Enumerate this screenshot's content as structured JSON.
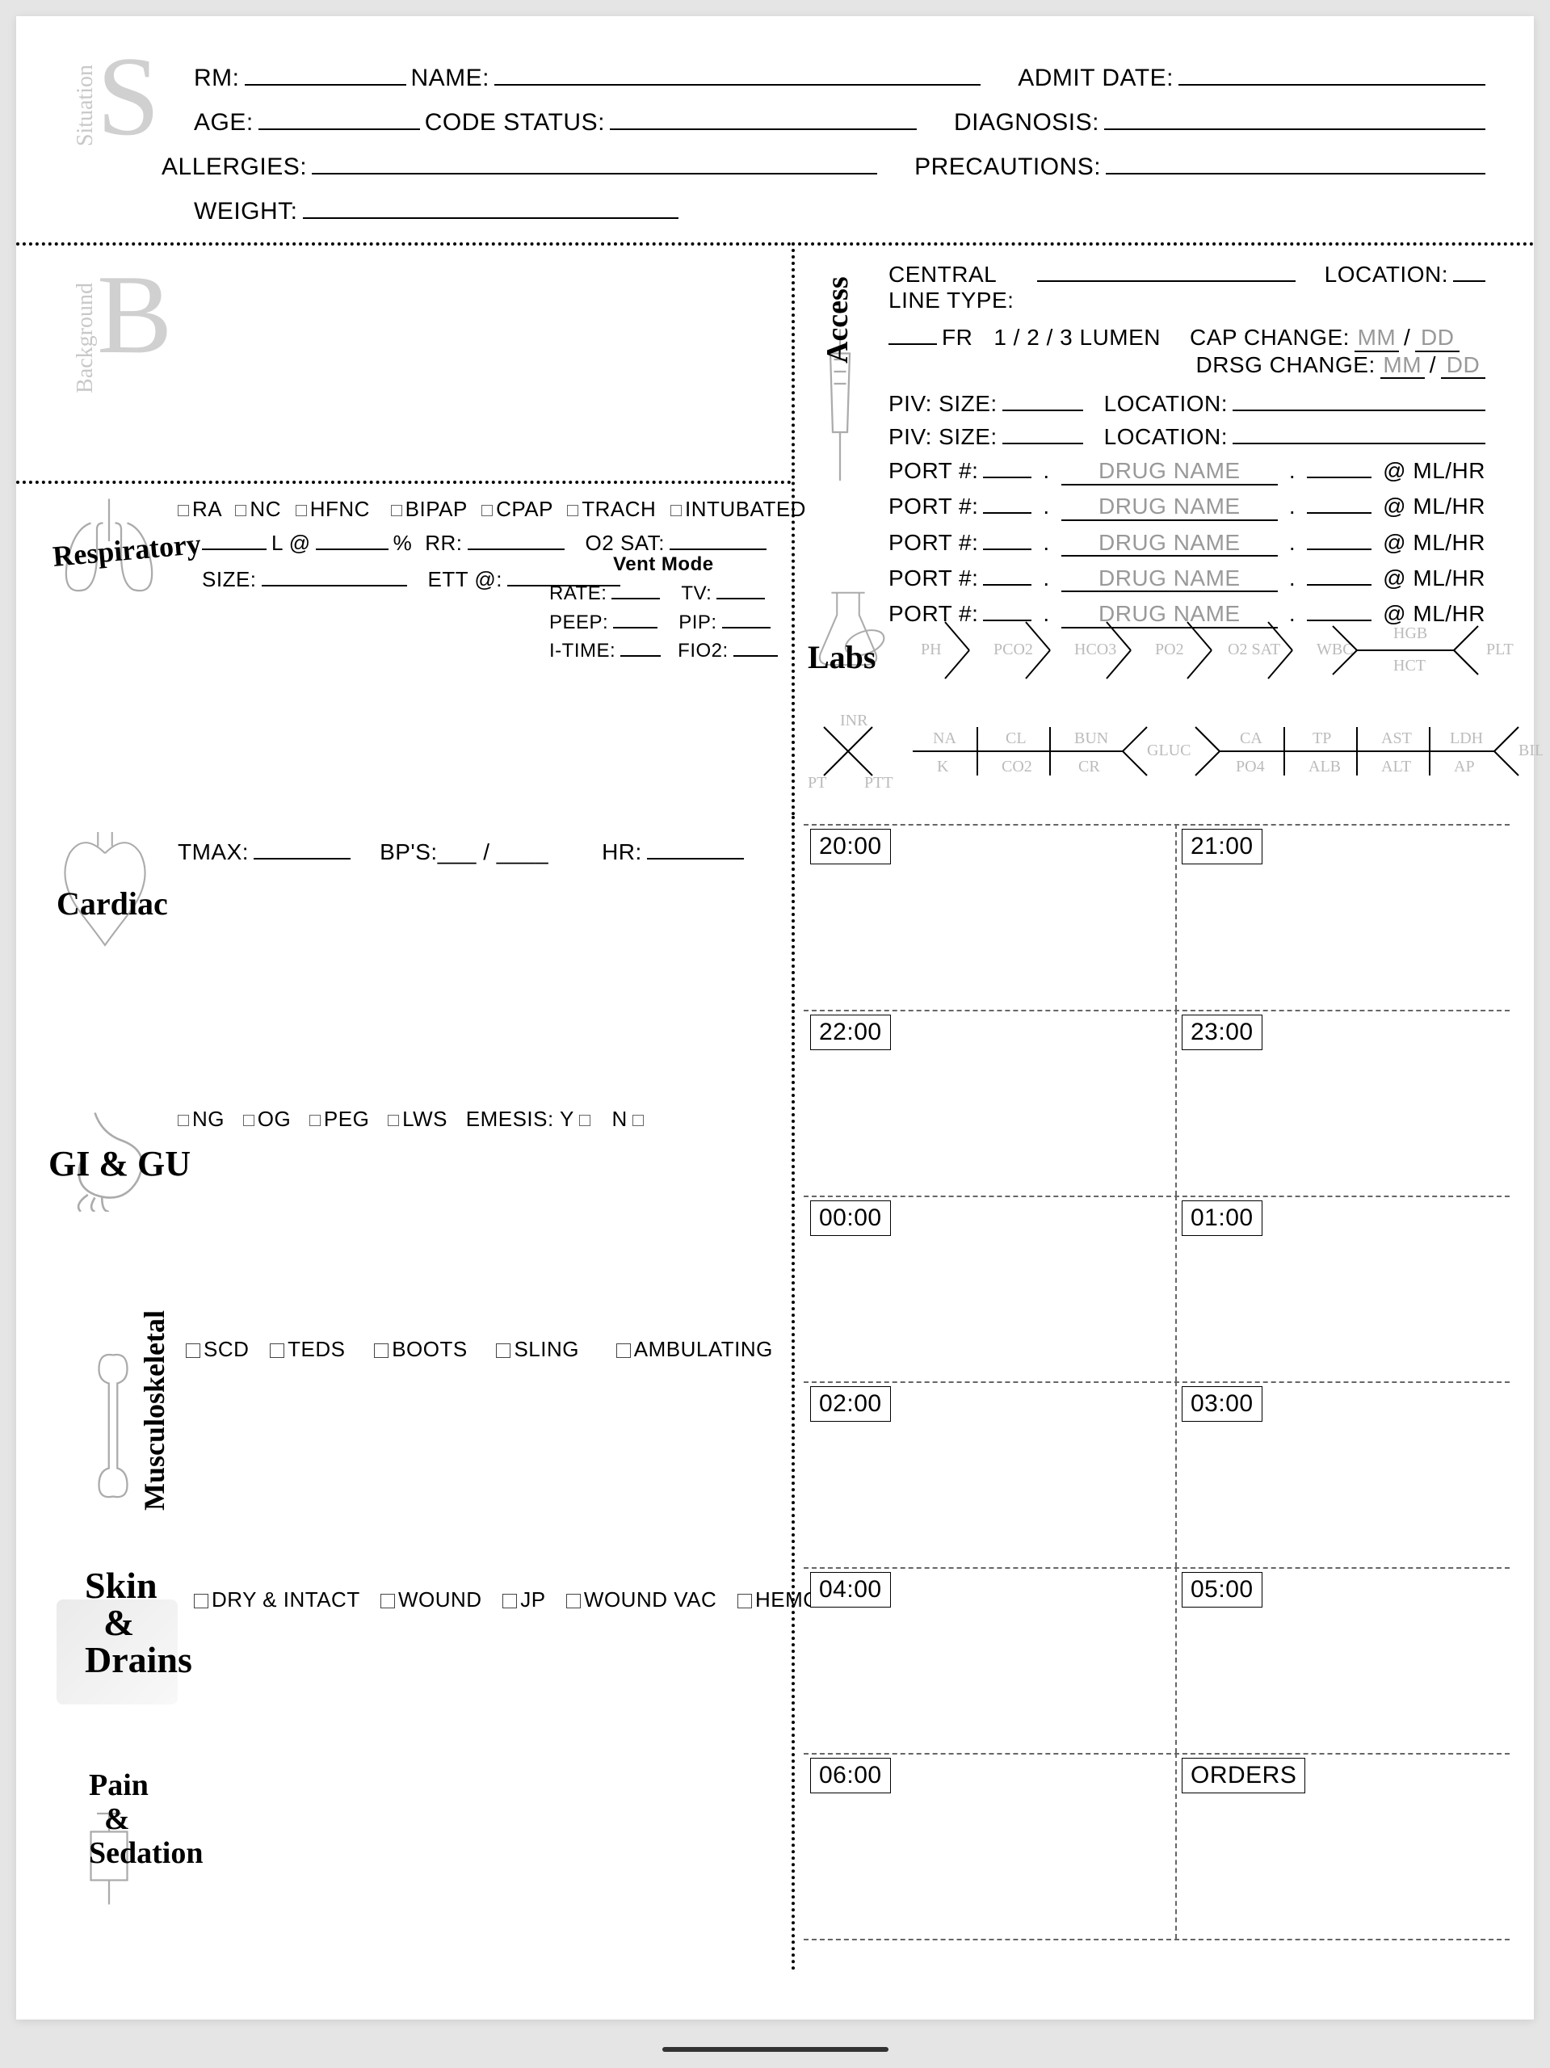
{
  "situation": {
    "letter": "S",
    "label": "Situation",
    "fields": {
      "rm": "RM:",
      "name": "NAME:",
      "admit_date": "ADMIT DATE:",
      "age": "AGE:",
      "code_status": "CODE STATUS:",
      "diagnosis": "DIAGNOSIS:",
      "allergies": "ALLERGIES:",
      "precautions": "PRECAUTIONS:",
      "weight": "WEIGHT:"
    }
  },
  "background": {
    "letter": "B",
    "label": "Background"
  },
  "respiratory": {
    "section_label": "Respiratory",
    "options": [
      "RA",
      "NC",
      "HFNC",
      "BIPAP",
      "CPAP",
      "TRACH",
      "INTUBATED"
    ],
    "l_at": "L @",
    "pct": "%",
    "rr": "RR:",
    "o2sat": "O2 SAT:",
    "size": "SIZE:",
    "ett_at": "ETT @:",
    "vent_title": "Vent Mode",
    "vent": {
      "rate": "RATE:",
      "tv": "TV:",
      "peep": "PEEP:",
      "pip": "PIP:",
      "itime": "I-TIME:",
      "fio2": "FIO2:"
    }
  },
  "access": {
    "section_label": "Access",
    "central_line_type": "CENTRAL LINE TYPE:",
    "location": "LOCATION:",
    "fr": "FR",
    "lumen": "1 / 2 / 3  LUMEN",
    "cap_change": "CAP CHANGE:",
    "drsg_change": "DRSG CHANGE:",
    "mm": "MM",
    "dd": "DD",
    "slash": "/",
    "piv_size": "PIV: SIZE:",
    "piv_location": "LOCATION:",
    "port": "PORT #:",
    "drug_name": "DRUG NAME",
    "at_mlhr": "@ ML/HR"
  },
  "labs": {
    "section_label": "Labs",
    "abg": [
      "PH",
      "PCO2",
      "HCO3",
      "PO2",
      "O2 SAT"
    ],
    "cbc": [
      "WBC",
      "HGB",
      "HCT",
      "PLT"
    ],
    "coag": [
      "INR",
      "PT",
      "PTT"
    ],
    "bmp": [
      "NA",
      "CL",
      "BUN",
      "GLUC",
      "K",
      "CO2",
      "CR"
    ],
    "lft": [
      "CA",
      "TP",
      "AST",
      "LDH",
      "BILI",
      "PO4",
      "ALB",
      "ALT",
      "AP"
    ]
  },
  "cardiac": {
    "section_label": "Cardiac",
    "tmax": "TMAX:",
    "bps": "BP'S:___ / ____",
    "hr": "HR:"
  },
  "gigu": {
    "section_label": "GI & GU",
    "options": [
      "NG",
      "OG",
      "PEG",
      "LWS"
    ],
    "emesis": "EMESIS: Y",
    "emesis_n": "N"
  },
  "msk": {
    "section_label": "Musculoskeletal",
    "options": [
      "SCD",
      "TEDS",
      "BOOTS",
      "SLING",
      "AMBULATING"
    ]
  },
  "skin": {
    "section_label": "Skin & Drains",
    "options": [
      "DRY & INTACT",
      "WOUND",
      "JP",
      "WOUND VAC",
      "HEMOVAC"
    ]
  },
  "pain": {
    "section_label": "Pain & Sedation"
  },
  "schedule": {
    "times": [
      "20:00",
      "21:00",
      "22:00",
      "23:00",
      "00:00",
      "01:00",
      "02:00",
      "03:00",
      "04:00",
      "05:00",
      "06:00"
    ],
    "orders": "ORDERS"
  },
  "colors": {
    "text": "#000000",
    "gray": "#999999",
    "lightgray": "#d0d0d0",
    "bg": "#ffffff"
  }
}
